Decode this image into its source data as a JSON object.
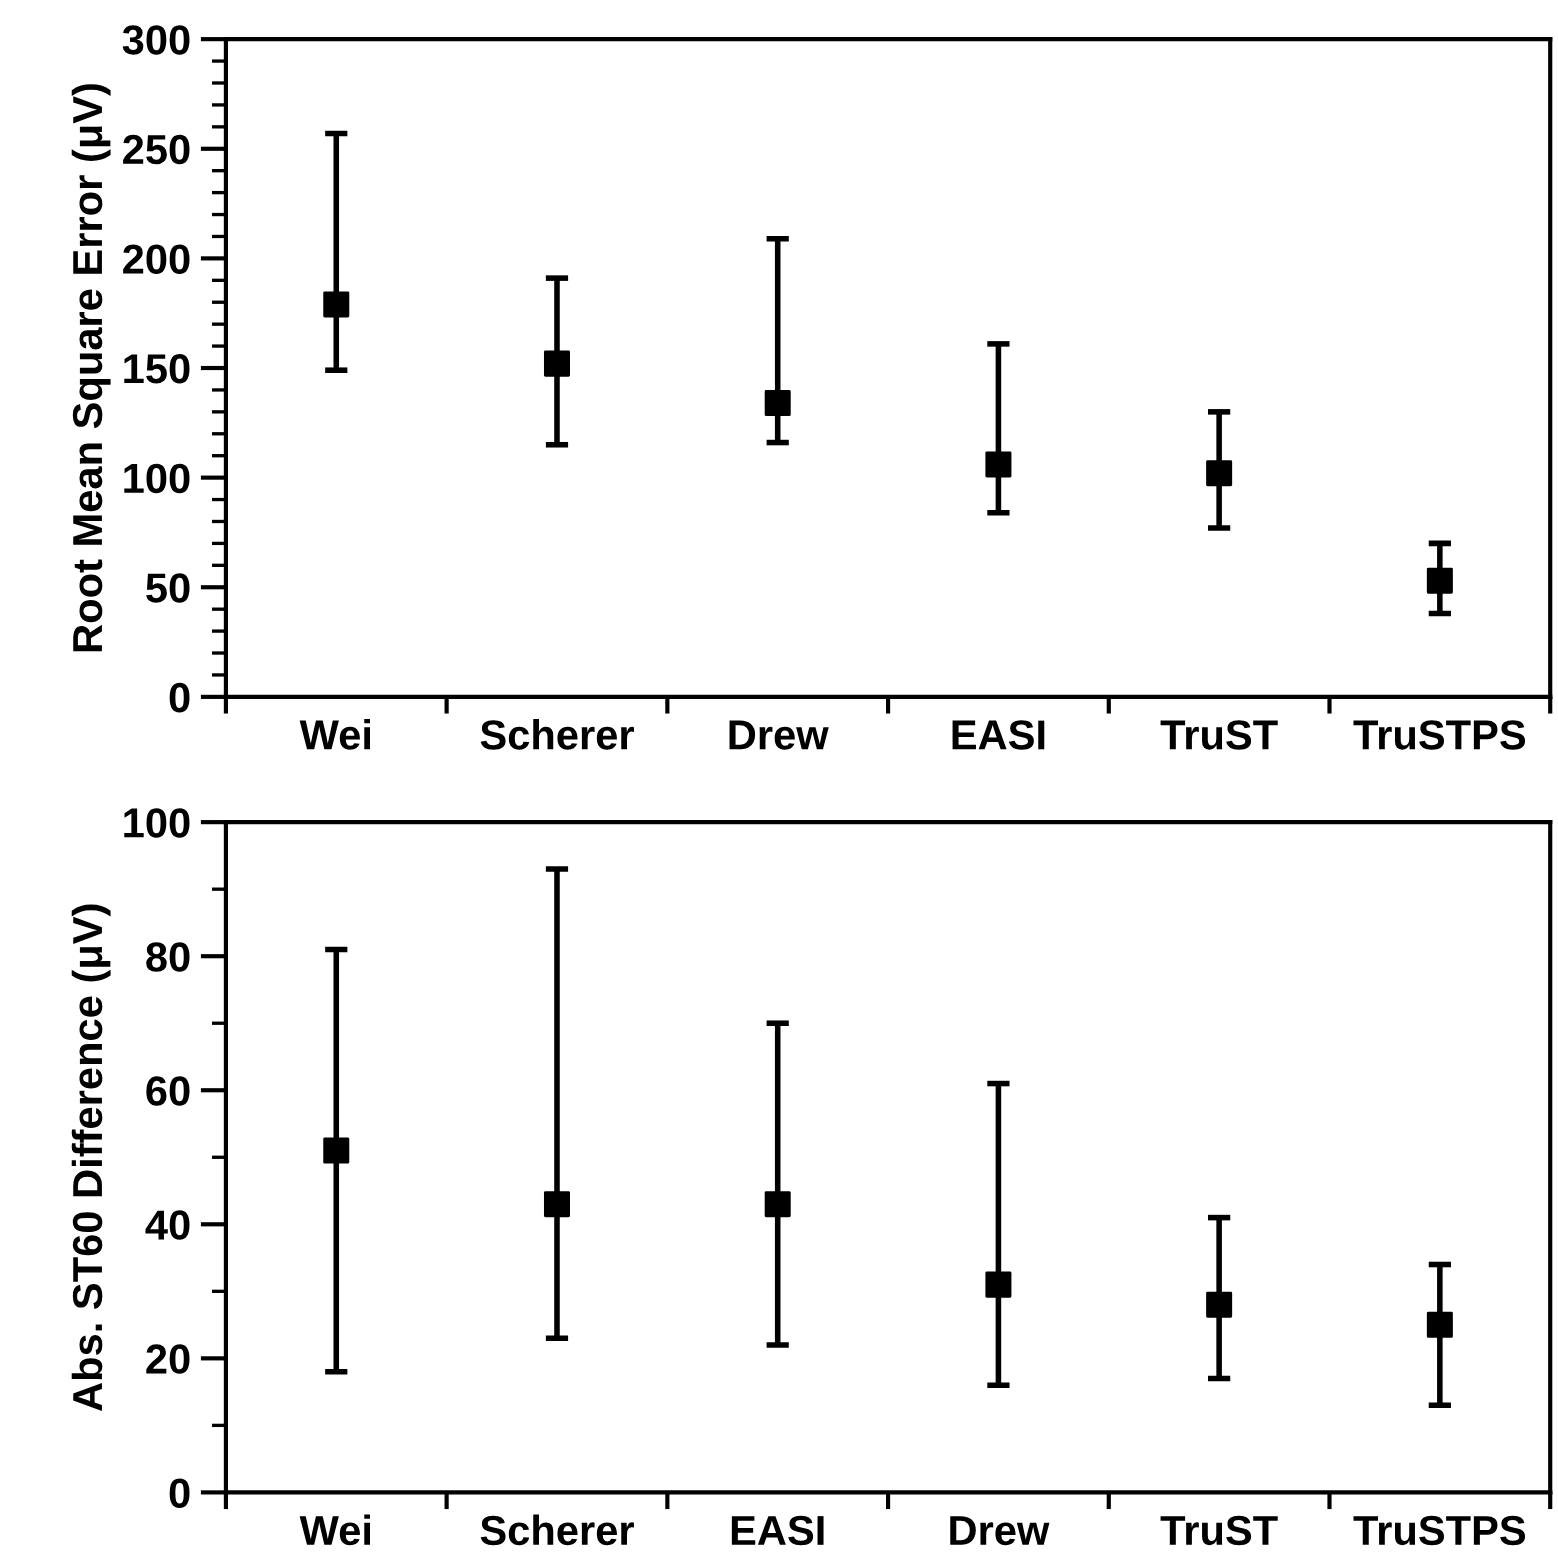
{
  "chart_data": [
    {
      "type": "scatter",
      "ylabel": "Root Mean Square Error (μV)",
      "categories": [
        "Wei",
        "Scherer",
        "Drew",
        "EASI",
        "TruST",
        "TruSTPS"
      ],
      "series": [
        {
          "color": "#000000",
          "values": [
            179,
            152,
            134,
            106,
            102,
            53
          ],
          "errors": [
            [
              149,
              257
            ],
            [
              115,
              191
            ],
            [
              116,
              209
            ],
            [
              84,
              161
            ],
            [
              77,
              130
            ],
            [
              38,
              70
            ]
          ]
        }
      ],
      "ylim": [
        0,
        300
      ],
      "yticks": [
        0,
        {
          "value": 10,
          "label": null
        },
        {
          "value": 20,
          "label": null
        },
        {
          "value": 30,
          "label": null
        },
        {
          "value": 40,
          "label": null
        },
        50,
        {
          "value": 60,
          "label": null
        },
        {
          "value": 70,
          "label": null
        },
        {
          "value": 80,
          "label": null
        },
        {
          "value": 90,
          "label": null
        },
        100,
        {
          "value": 110,
          "label": null
        },
        {
          "value": 120,
          "label": null
        },
        {
          "value": 130,
          "label": null
        },
        {
          "value": 140,
          "label": null
        },
        150,
        {
          "value": 160,
          "label": null
        },
        {
          "value": 170,
          "label": null
        },
        {
          "value": 180,
          "label": null
        },
        {
          "value": 190,
          "label": null
        },
        200,
        {
          "value": 210,
          "label": null
        },
        {
          "value": 220,
          "label": null
        },
        {
          "value": 230,
          "label": null
        },
        {
          "value": 240,
          "label": null
        },
        250,
        {
          "value": 260,
          "label": null
        },
        {
          "value": 270,
          "label": null
        },
        {
          "value": 280,
          "label": null
        },
        {
          "value": 290,
          "label": null
        },
        300
      ],
      "marker": "square",
      "grid": false,
      "legend": false
    },
    {
      "type": "scatter",
      "ylabel": "Abs. ST60 Difference (μV)",
      "categories": [
        "Wei",
        "Scherer",
        "EASI",
        "Drew",
        "TruST",
        "TruSTPS"
      ],
      "series": [
        {
          "color": "#000000",
          "values": [
            51,
            43,
            43,
            31,
            28,
            25
          ],
          "errors": [
            [
              18,
              81
            ],
            [
              23,
              93
            ],
            [
              22,
              70
            ],
            [
              16,
              61
            ],
            [
              17,
              41
            ],
            [
              13,
              34
            ]
          ]
        }
      ],
      "ylim": [
        0,
        100
      ],
      "yticks": [
        0,
        {
          "value": 10,
          "label": null
        },
        20,
        {
          "value": 30,
          "label": null
        },
        40,
        {
          "value": 50,
          "label": null
        },
        60,
        {
          "value": 70,
          "label": null
        },
        80,
        {
          "value": 90,
          "label": null
        },
        100
      ],
      "marker": "square",
      "grid": false,
      "legend": false
    }
  ]
}
